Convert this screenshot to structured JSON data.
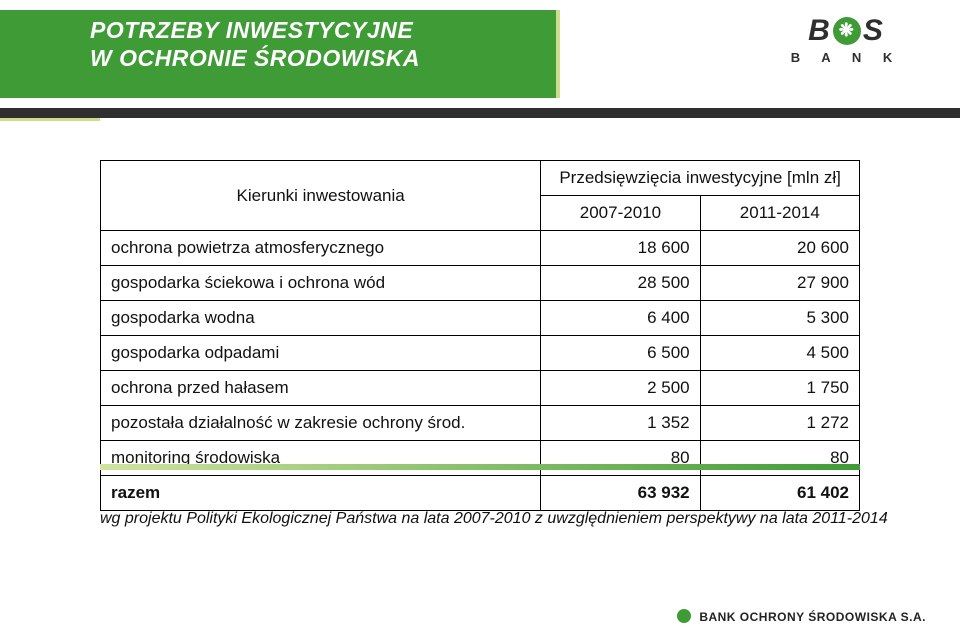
{
  "header": {
    "title_line1": "POTRZEBY INWESTYCYJNE",
    "title_line2": "W OCHRONIE ŚRODOWISKA"
  },
  "logo": {
    "text1": "B",
    "text2": "S",
    "sub": "B A N K"
  },
  "table": {
    "head": {
      "dir": "Kierunki inwestowania",
      "group": "Przedsięwzięcia inwestycyjne [mln zł]",
      "p1": "2007-2010",
      "p2": "2011-2014"
    },
    "rows": [
      {
        "label": "ochrona powietrza atmosferycznego",
        "v1": "18 600",
        "v2": "20 600"
      },
      {
        "label": "gospodarka ściekowa i ochrona wód",
        "v1": "28 500",
        "v2": "27 900"
      },
      {
        "label": "gospodarka wodna",
        "v1": "6 400",
        "v2": "5 300"
      },
      {
        "label": "gospodarka odpadami",
        "v1": "6 500",
        "v2": "4 500"
      },
      {
        "label": "ochrona przed hałasem",
        "v1": "2 500",
        "v2": "1 750"
      },
      {
        "label": "pozostała działalność w zakresie ochrony środ.",
        "v1": "1 352",
        "v2": "1 272"
      },
      {
        "label": "monitoring środowiska",
        "v1": "80",
        "v2": "80"
      },
      {
        "label": "razem",
        "v1": "63 932",
        "v2": "61 402"
      }
    ]
  },
  "footnote": "wg projektu Polityki Ekologicznej Państwa na lata 2007-2010 z uwzględnieniem perspektywy na lata 2011-2014",
  "footer": "BANK OCHRONY ŚRODOWISKA S.A.",
  "colors": {
    "green": "#3f9b36",
    "accent": "#cddc8f",
    "dark": "#2f2f2f",
    "white": "#ffffff"
  }
}
